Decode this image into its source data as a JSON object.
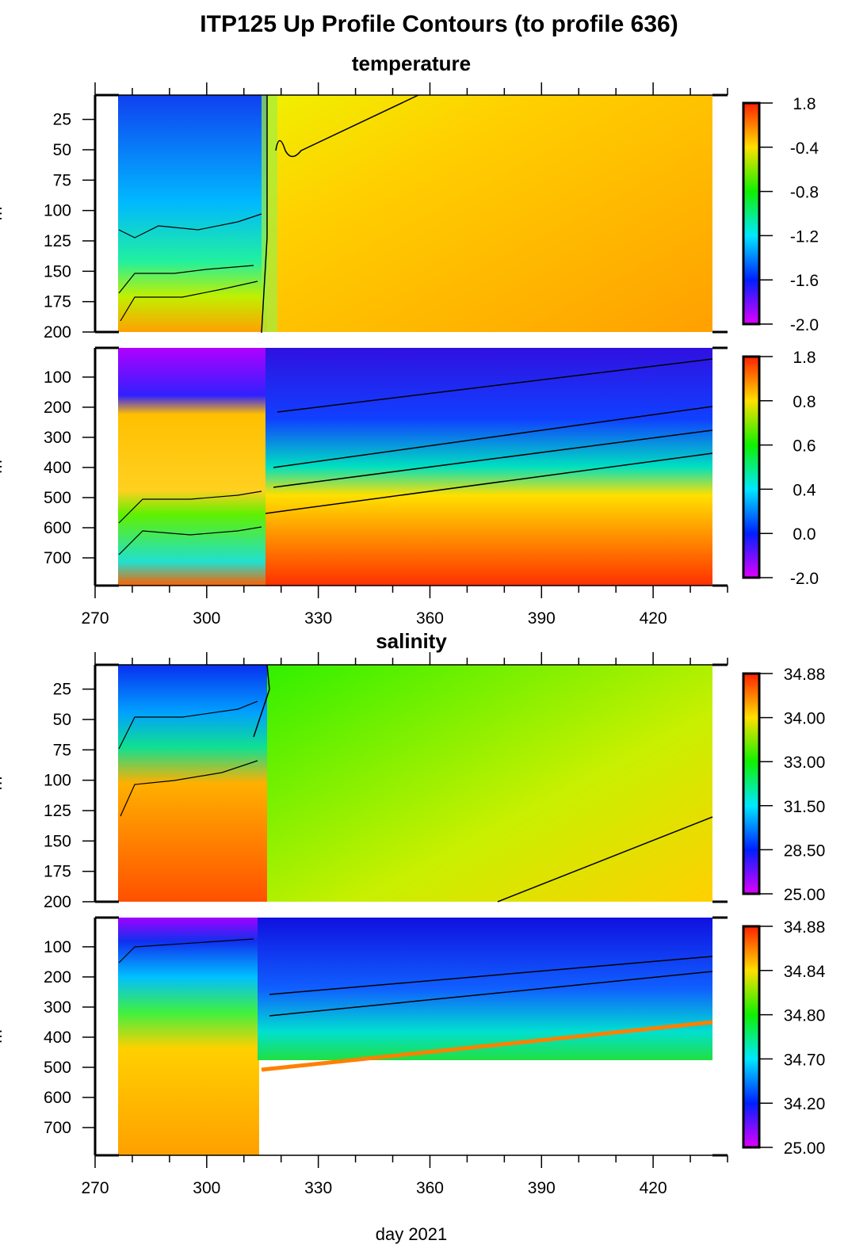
{
  "title": "ITP125 Up Profile Contours (to profile 636)",
  "xlabel": "day 2021",
  "chart_data": [
    {
      "type": "heatmap",
      "title": "temperature",
      "ylabel": "m",
      "xlim": [
        270,
        440
      ],
      "ylim": [
        200,
        5
      ],
      "xticks": [
        270,
        300,
        330,
        360,
        390,
        420
      ],
      "yticks": [
        25,
        50,
        75,
        100,
        125,
        150,
        175,
        200
      ],
      "colorbar": {
        "ticks": [
          "1.8",
          "-0.4",
          "-0.8",
          "-1.2",
          "-1.6",
          "-2.0"
        ]
      }
    },
    {
      "type": "heatmap",
      "ylabel": "m",
      "xlim": [
        270,
        440
      ],
      "ylim": [
        792,
        3
      ],
      "xticks": [
        270,
        300,
        330,
        360,
        390,
        420
      ],
      "yticks": [
        100,
        200,
        300,
        400,
        500,
        600,
        700
      ],
      "xticklabels": [
        "270",
        "300",
        "330",
        "360",
        "390",
        "420"
      ],
      "colorbar": {
        "ticks": [
          "1.8",
          "0.8",
          "0.6",
          "0.4",
          "0.0",
          "-2.0"
        ]
      }
    },
    {
      "type": "heatmap",
      "title": "salinity",
      "ylabel": "m",
      "xlim": [
        270,
        440
      ],
      "ylim": [
        200,
        5
      ],
      "xticks": [
        270,
        300,
        330,
        360,
        390,
        420
      ],
      "yticks": [
        25,
        50,
        75,
        100,
        125,
        150,
        175,
        200
      ],
      "colorbar": {
        "ticks": [
          "34.88",
          "34.00",
          "33.00",
          "31.50",
          "28.50",
          "25.00"
        ]
      }
    },
    {
      "type": "heatmap",
      "ylabel": "m",
      "xlim": [
        270,
        440
      ],
      "ylim": [
        792,
        3
      ],
      "xticks": [
        270,
        300,
        330,
        360,
        390,
        420
      ],
      "yticks": [
        100,
        200,
        300,
        400,
        500,
        600,
        700
      ],
      "xticklabels": [
        "270",
        "300",
        "330",
        "360",
        "390",
        "420"
      ],
      "colorbar": {
        "ticks": [
          "34.88",
          "34.84",
          "34.80",
          "34.70",
          "34.20",
          "25.00"
        ]
      }
    }
  ]
}
